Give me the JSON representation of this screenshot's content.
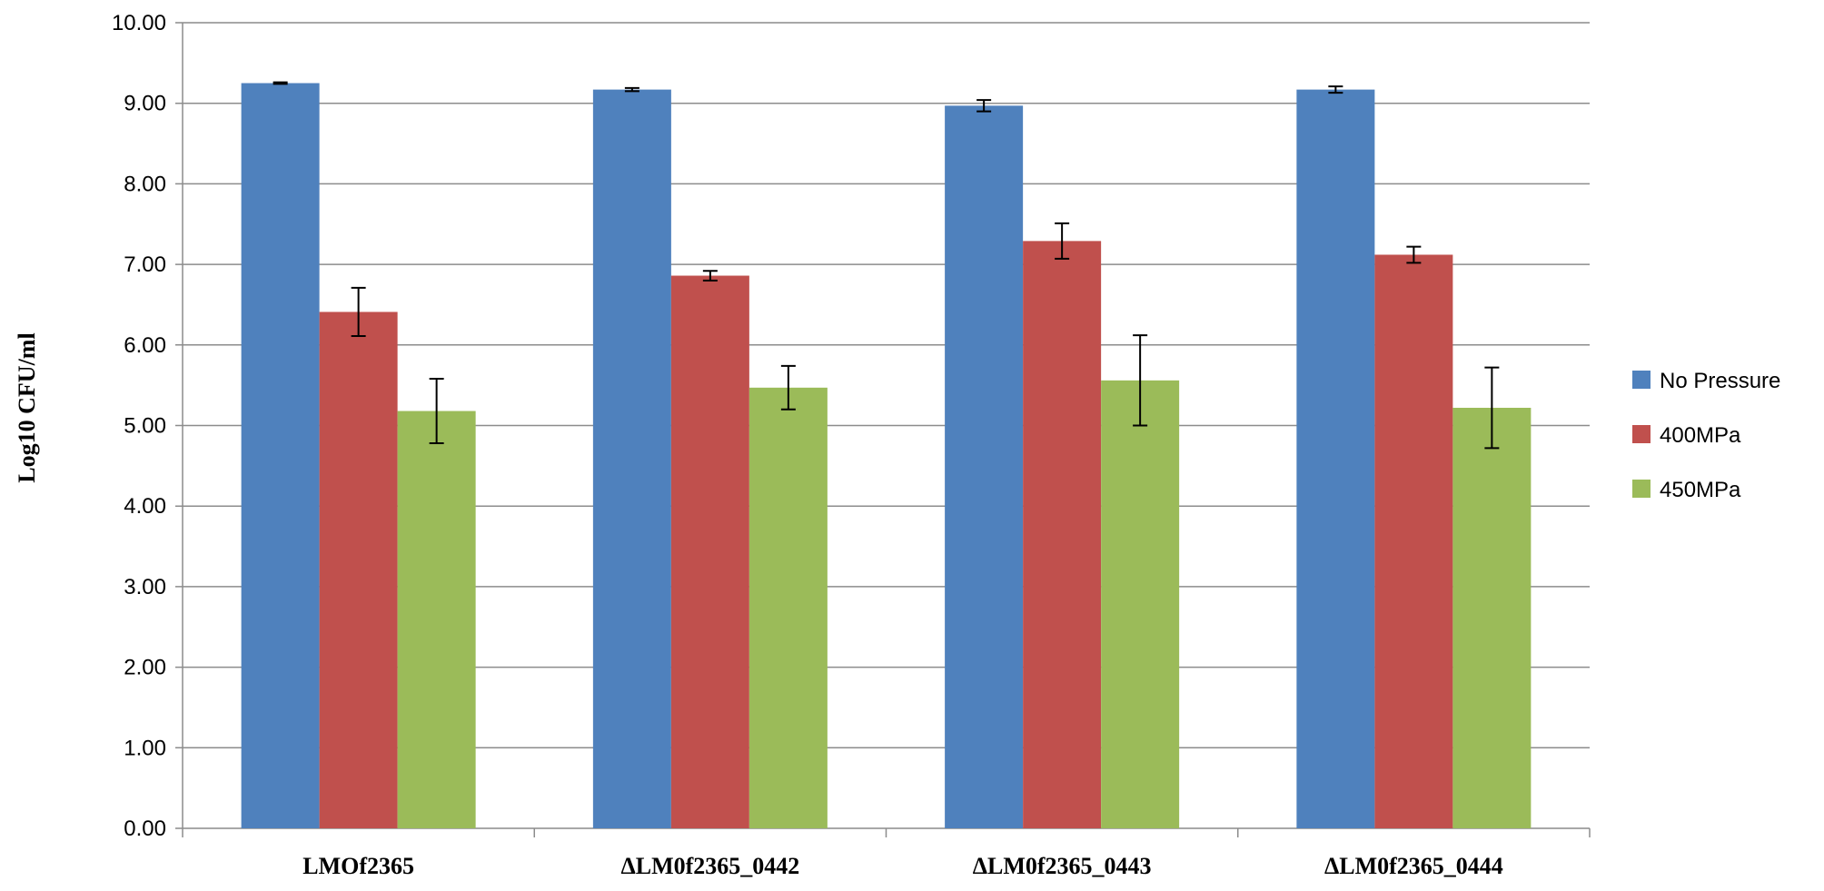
{
  "chart_data": {
    "type": "bar",
    "title": "",
    "xlabel": "",
    "ylabel": "Log10 CFU/ml",
    "ylim": [
      0,
      10
    ],
    "ytick_step": 1,
    "ytick_labels": [
      "0.00",
      "1.00",
      "2.00",
      "3.00",
      "4.00",
      "5.00",
      "6.00",
      "7.00",
      "8.00",
      "9.00",
      "10.00"
    ],
    "grid": true,
    "legend_position": "right",
    "categories": [
      "LMOf2365",
      "ΔLM0f2365_0442",
      "ΔLM0f2365_0443",
      "ΔLM0f2365_0444"
    ],
    "series": [
      {
        "name": "No Pressure",
        "color": "#4f81bd",
        "values": [
          9.25,
          9.17,
          8.97,
          9.17
        ],
        "errors": [
          0.01,
          0.02,
          0.07,
          0.04
        ]
      },
      {
        "name": "400MPa",
        "color": "#c0504d",
        "values": [
          6.41,
          6.86,
          7.29,
          7.12
        ],
        "errors": [
          0.3,
          0.06,
          0.22,
          0.1
        ]
      },
      {
        "name": "450MPa",
        "color": "#9bbb59",
        "values": [
          5.18,
          5.47,
          5.56,
          5.22
        ],
        "errors": [
          0.4,
          0.27,
          0.56,
          0.5
        ]
      }
    ]
  }
}
